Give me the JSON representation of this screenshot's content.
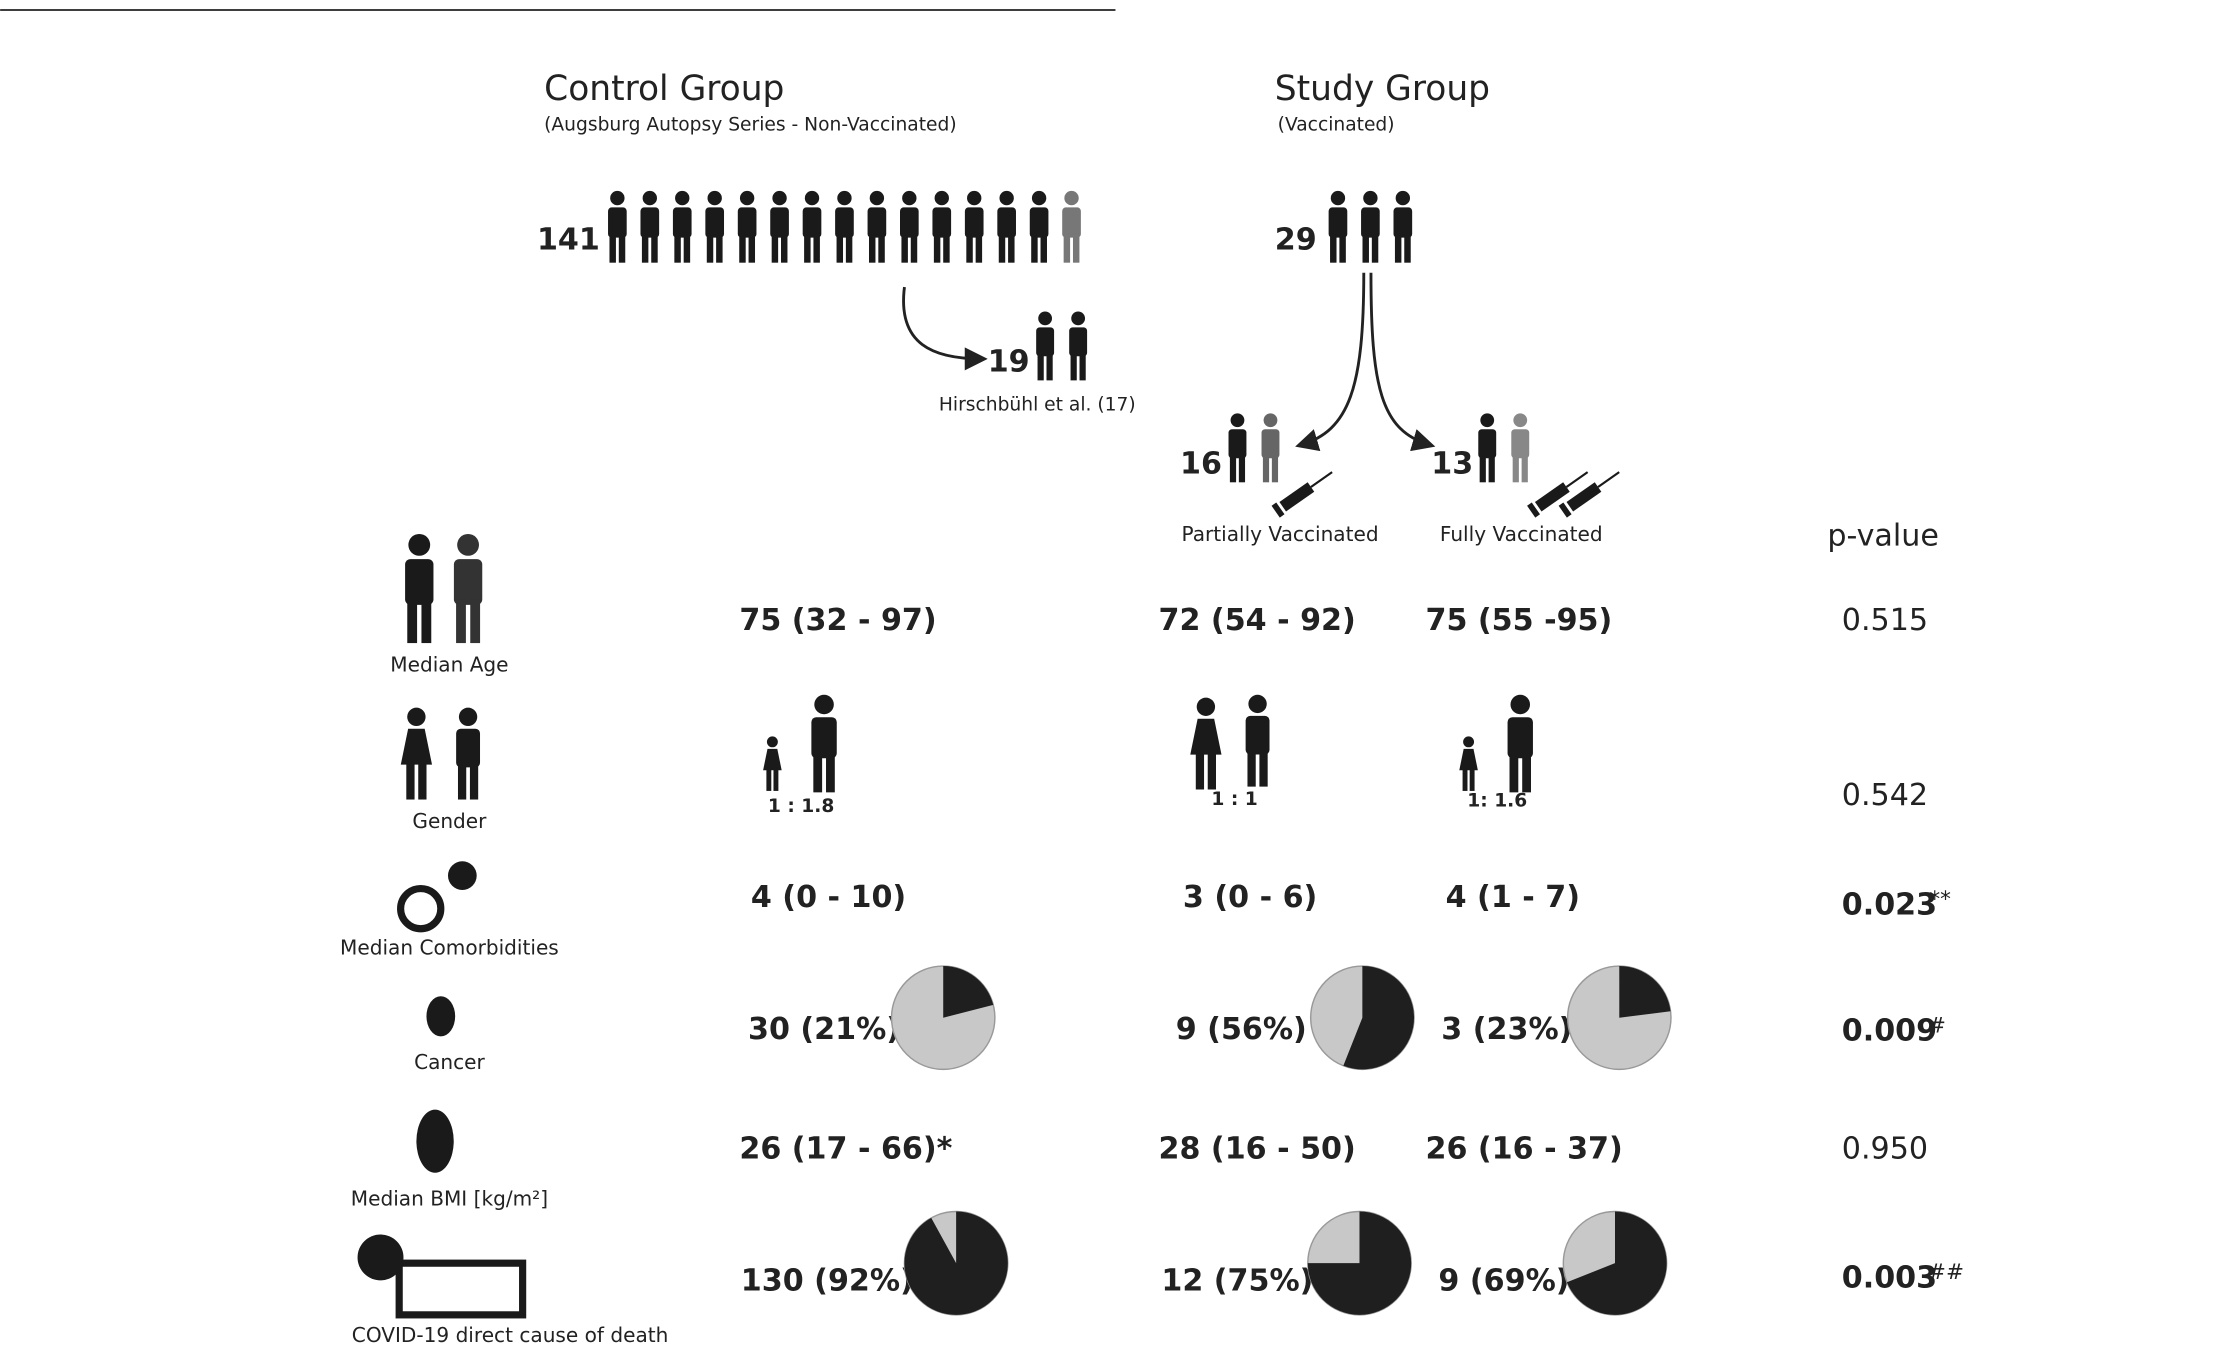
{
  "groups": {
    "control": {
      "title": "Control Group",
      "subtitle": "(Augsburg Autopsy Series - Non-Vaccinated)",
      "count": 141,
      "subset": {
        "count": 19,
        "label": "Hirschbühl et al. (17)"
      }
    },
    "study": {
      "title": "Study Group",
      "subtitle": "(Vaccinated)",
      "count": 29,
      "partial": {
        "count": 16,
        "label": "Partially  Vaccinated"
      },
      "full": {
        "count": 13,
        "label": "Fully Vaccinated"
      }
    }
  },
  "p_value_header": "p-value",
  "rows": [
    {
      "label": "Median Age",
      "control": "75 (32 - 97)",
      "partial": "72 (54 - 92)",
      "full": "75 (55 -95)",
      "p": "0.515"
    },
    {
      "label": "Gender",
      "control": "1 : 1.8",
      "partial": "1 : 1",
      "full": "1: 1.6",
      "p": "0.542"
    },
    {
      "label": "Median Comorbidities",
      "control": "4 (0 - 10)",
      "partial": "3 (0 - 6)",
      "full": "4 (1 - 7)",
      "p": "0.023",
      "p_mark": "**"
    },
    {
      "label": "Cancer",
      "control": {
        "text": "30 (21%)",
        "share": 21
      },
      "partial": {
        "text": "9 (56%)",
        "share": 56
      },
      "full": {
        "text": "3 (23%)",
        "share": 23
      },
      "p": "0.009",
      "p_mark": "#"
    },
    {
      "label": "Median BMI [kg/m²]",
      "control": "26 (17 - 66)*",
      "partial": "28 (16 - 50)",
      "full": "26 (16 - 37)",
      "p": "0.950"
    },
    {
      "label": "COVID-19 direct cause of death",
      "control": {
        "text": "130 (92%)",
        "share": 92
      },
      "partial": {
        "text": "12 (75%)",
        "share": 75
      },
      "full": {
        "text": "9 (69%)",
        "share": 69
      },
      "p": "0.003",
      "p_mark": "##"
    }
  ]
}
